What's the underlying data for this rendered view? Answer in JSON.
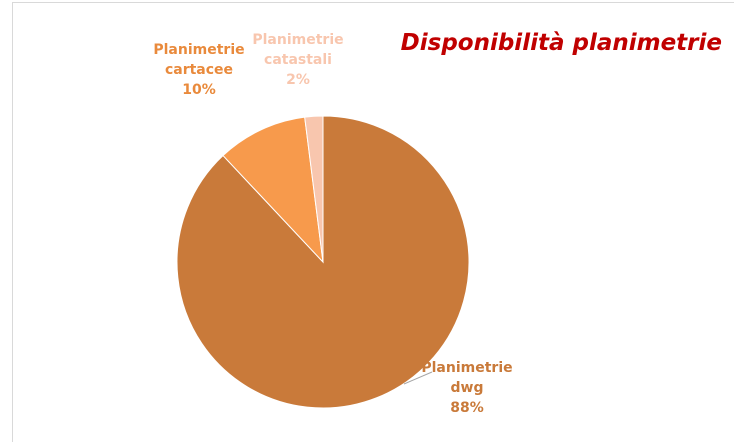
{
  "chart_data": {
    "type": "pie",
    "title": "Disponibilità planimetrie",
    "categories": [
      "Planimetrie dwg",
      "Planimetrie cartacee",
      "Planimetrie catastali"
    ],
    "values": [
      88,
      10,
      2
    ],
    "value_labels": [
      "88%",
      "10%",
      "2%"
    ],
    "colors": [
      "#c97a3a",
      "#f79a4c",
      "#f8c6ae"
    ]
  }
}
